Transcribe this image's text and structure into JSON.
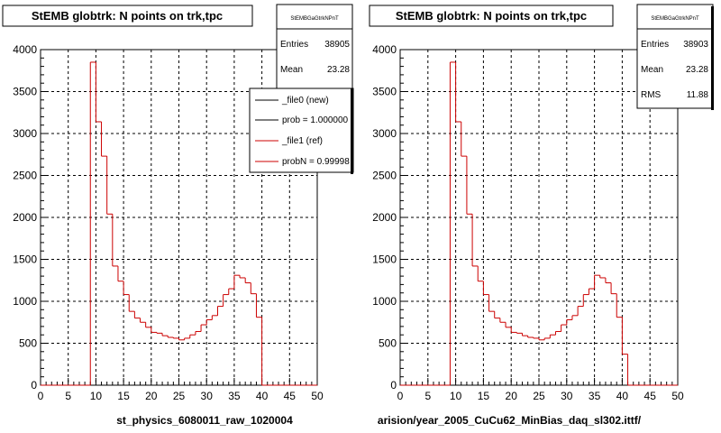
{
  "footer_text": "",
  "chart_data": [
    {
      "type": "line",
      "step": true,
      "title": "StEMB globtrk: N points on trk,tpc",
      "xlabel": "st_physics_6080011_raw_1020004",
      "ylabel": "",
      "xlim": [
        0,
        50
      ],
      "ylim": [
        0,
        4000
      ],
      "xticks": [
        "0",
        "5",
        "10",
        "15",
        "20",
        "25",
        "30",
        "35",
        "40",
        "45",
        "50"
      ],
      "yticks": [
        "0",
        "500",
        "1000",
        "1500",
        "2000",
        "2500",
        "3000",
        "3500",
        "4000"
      ],
      "grid": true,
      "line_color": "#cc0000",
      "bin_edges_x": [
        0,
        1,
        2,
        3,
        4,
        5,
        6,
        7,
        8,
        9,
        10,
        11,
        12,
        13,
        14,
        15,
        16,
        17,
        18,
        19,
        20,
        21,
        22,
        23,
        24,
        25,
        26,
        27,
        28,
        29,
        30,
        31,
        32,
        33,
        34,
        35,
        36,
        37,
        38,
        39,
        40,
        41,
        42,
        43,
        44,
        45,
        46,
        47,
        48,
        49,
        50
      ],
      "values": [
        0,
        0,
        0,
        0,
        0,
        0,
        0,
        0,
        0,
        3850,
        3140,
        2730,
        2040,
        1420,
        1240,
        1080,
        880,
        800,
        750,
        690,
        630,
        620,
        590,
        570,
        560,
        540,
        560,
        600,
        640,
        720,
        780,
        830,
        940,
        1080,
        1150,
        1310,
        1280,
        1220,
        1090,
        810,
        0,
        0,
        0,
        0,
        0,
        0,
        0,
        0,
        0,
        0
      ],
      "stats": {
        "title": "StEMBGaGtrkNPnT",
        "entries_label": "Entries",
        "entries": "38905",
        "mean_label": "Mean",
        "mean": "23.28"
      },
      "legend": {
        "placement": "top-right",
        "entries": [
          {
            "label": "_file0 (new)",
            "color": "#000000"
          },
          {
            "label": "prob = 1.000000",
            "color": "#000000"
          },
          {
            "label": "_file1 (ref)",
            "color": "#cc0000"
          },
          {
            "label": "probN = 0.99998",
            "color": "#cc0000"
          }
        ]
      }
    },
    {
      "type": "line",
      "step": true,
      "title": "StEMB globtrk: N points on trk,tpc",
      "xlabel": "arision/year_2005_CuCu62_MinBias_daq_sl302.ittf/",
      "ylabel": "",
      "xlim": [
        0,
        50
      ],
      "ylim": [
        0,
        4000
      ],
      "xticks": [
        "0",
        "5",
        "10",
        "15",
        "20",
        "25",
        "30",
        "35",
        "40",
        "45",
        "50"
      ],
      "yticks": [
        "0",
        "500",
        "1000",
        "1500",
        "2000",
        "2500",
        "3000",
        "3500",
        "4000"
      ],
      "grid": true,
      "line_color": "#cc0000",
      "bin_edges_x": [
        0,
        1,
        2,
        3,
        4,
        5,
        6,
        7,
        8,
        9,
        10,
        11,
        12,
        13,
        14,
        15,
        16,
        17,
        18,
        19,
        20,
        21,
        22,
        23,
        24,
        25,
        26,
        27,
        28,
        29,
        30,
        31,
        32,
        33,
        34,
        35,
        36,
        37,
        38,
        39,
        40,
        41,
        42,
        43,
        44,
        45,
        46,
        47,
        48,
        49,
        50
      ],
      "values": [
        0,
        0,
        0,
        0,
        0,
        0,
        0,
        0,
        0,
        3850,
        3140,
        2730,
        2040,
        1420,
        1240,
        1080,
        880,
        800,
        750,
        690,
        630,
        620,
        590,
        570,
        560,
        540,
        560,
        600,
        640,
        720,
        780,
        830,
        940,
        1080,
        1150,
        1310,
        1280,
        1220,
        1090,
        810,
        370,
        0,
        0,
        0,
        0,
        0,
        0,
        0,
        0,
        0
      ],
      "stats": {
        "title": "StEMBGaGtrkNPnT",
        "entries_label": "Entries",
        "entries": "38903",
        "mean_label": "Mean",
        "mean": "23.28",
        "rms_label": "RMS",
        "rms": "11.88"
      }
    }
  ]
}
